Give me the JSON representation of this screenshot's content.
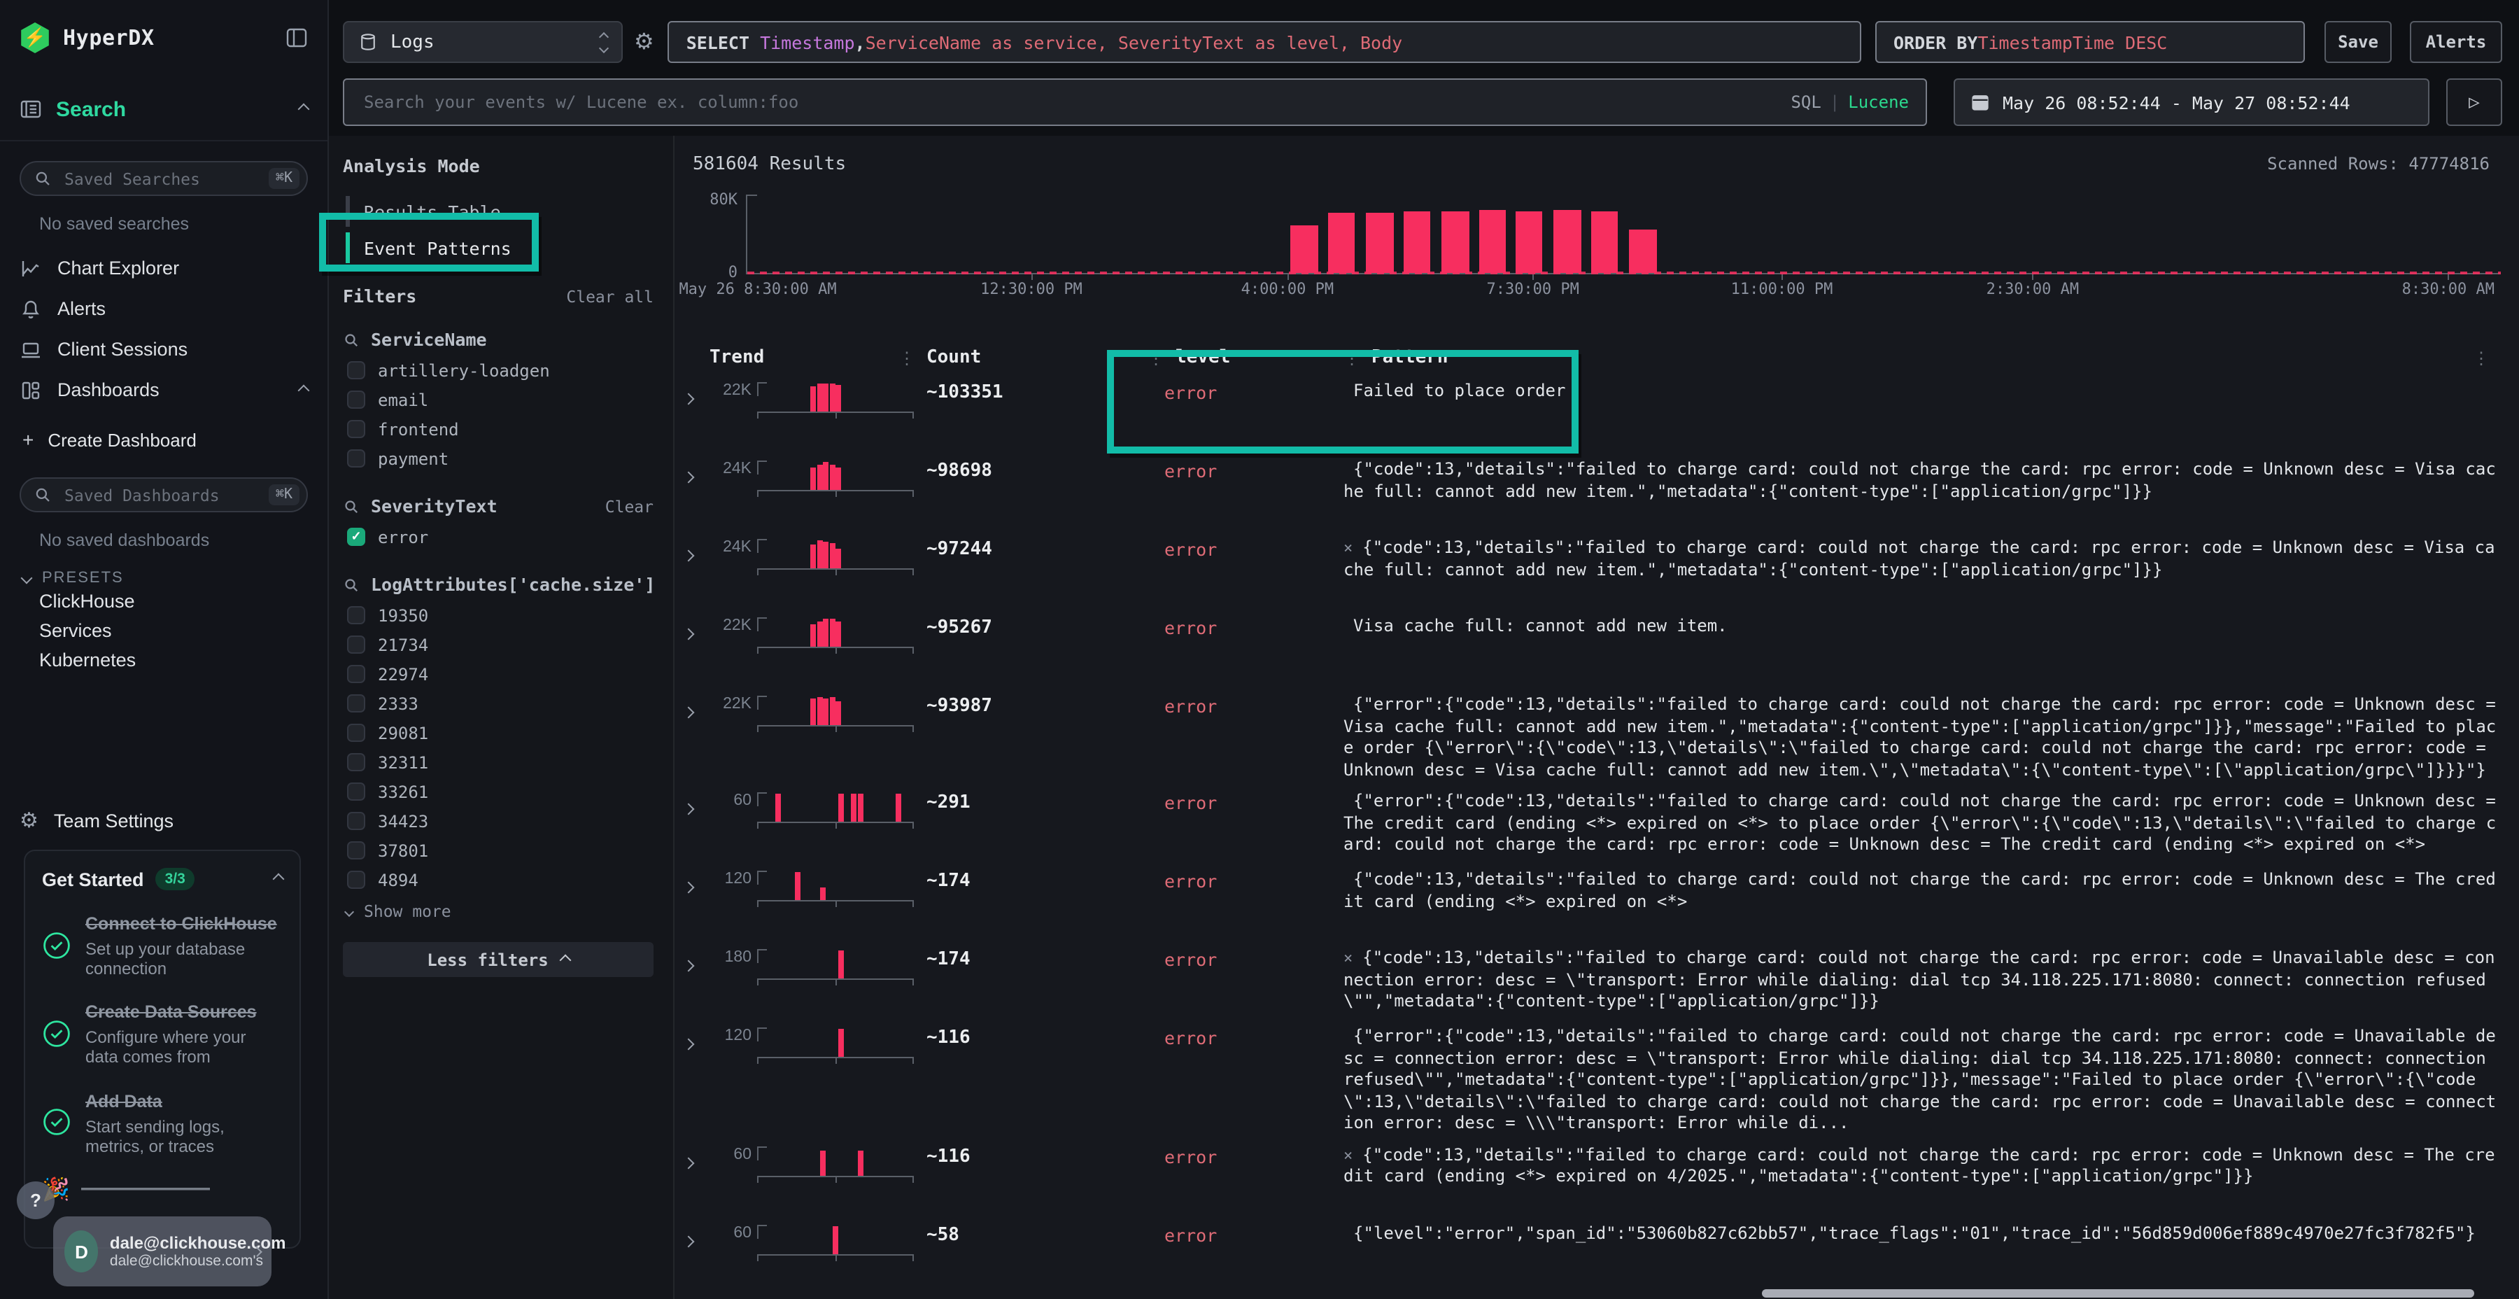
{
  "app": {
    "name": "HyperDX"
  },
  "sidebar": {
    "search_nav": "Search",
    "saved_searches_placeholder": "Saved Searches",
    "shortcut": "⌘K",
    "no_saved_searches": "No saved searches",
    "nav": [
      {
        "label": "Chart Explorer"
      },
      {
        "label": "Alerts"
      },
      {
        "label": "Client Sessions"
      },
      {
        "label": "Dashboards"
      }
    ],
    "create_dashboard": "Create Dashboard",
    "saved_dashboards_placeholder": "Saved Dashboards",
    "no_saved_dashboards": "No saved dashboards",
    "presets_label": "PRESETS",
    "presets": [
      "ClickHouse",
      "Services",
      "Kubernetes"
    ],
    "team_settings": "Team Settings",
    "get_started": {
      "title": "Get Started",
      "badge": "3/3",
      "items": [
        {
          "title": "Connect to ClickHouse",
          "desc": "Set up your database connection"
        },
        {
          "title": "Create Data Sources",
          "desc": "Configure where your data comes from"
        },
        {
          "title": "Add Data",
          "desc": "Start sending logs, metrics, or traces"
        }
      ],
      "partial_item_emoji": "🎉"
    },
    "help_label": "?",
    "user": {
      "avatar": "D",
      "name": "dale@clickhouse.com",
      "sub": "dale@clickhouse.com's"
    }
  },
  "topbar": {
    "source_select": "Logs",
    "select_query": {
      "kw": "SELECT",
      "col1": "Timestamp",
      "comma": ",",
      "rest": " ServiceName as service, SeverityText as level, Body"
    },
    "order_by": {
      "kw": "ORDER BY",
      "expr": " TimestampTime DESC"
    },
    "save_label": "Save",
    "alerts_label": "Alerts",
    "search_placeholder": "Search your events w/ Lucene ex. column:foo",
    "lang_sql": "SQL",
    "lang_sep": "|",
    "lang_lucene": "Lucene",
    "date_range": "May 26 08:52:44 - May 27 08:52:44",
    "run_label": "▷"
  },
  "filters_panel": {
    "analysis_mode": "Analysis Mode",
    "modes": [
      "Results Table",
      "Event Patterns"
    ],
    "filters_label": "Filters",
    "clear_all": "Clear all",
    "groups": {
      "service": {
        "label": "ServiceName",
        "items": [
          "artillery-loadgen",
          "email",
          "frontend",
          "payment"
        ]
      },
      "severity": {
        "label": "SeverityText",
        "clear": "Clear",
        "item": "error",
        "checked": true
      },
      "cache": {
        "label": "LogAttributes['cache.size']",
        "items": [
          "19350",
          "21734",
          "22974",
          "2333",
          "29081",
          "32311",
          "33261",
          "34423",
          "37801",
          "4894"
        ]
      }
    },
    "show_more": "Show more",
    "less_filters": "Less filters"
  },
  "main": {
    "results_label": "581604 Results",
    "scanned_label": "Scanned Rows: 47774816"
  },
  "chart_data": {
    "type": "bar",
    "title": "581604 Results",
    "ylabel": "",
    "xlabel": "",
    "ylim": [
      0,
      80000
    ],
    "yticks": [
      "0",
      "80K"
    ],
    "grid": false,
    "bar_color": "#f72e5f",
    "bars": [
      {
        "x": 0.31,
        "count": 48000
      },
      {
        "x": 0.331,
        "count": 62000
      },
      {
        "x": 0.353,
        "count": 61000
      },
      {
        "x": 0.374,
        "count": 63000
      },
      {
        "x": 0.396,
        "count": 63000
      },
      {
        "x": 0.417,
        "count": 64000
      },
      {
        "x": 0.438,
        "count": 63000
      },
      {
        "x": 0.46,
        "count": 64000
      },
      {
        "x": 0.481,
        "count": 63000
      },
      {
        "x": 0.503,
        "count": 44000
      }
    ],
    "xticks": [
      {
        "x": 0.006,
        "label": "May 26 8:30:00 AM"
      },
      {
        "x": 0.162,
        "label": "12:30:00 PM"
      },
      {
        "x": 0.308,
        "label": "4:00:00 PM"
      },
      {
        "x": 0.448,
        "label": "7:30:00 PM"
      },
      {
        "x": 0.59,
        "label": "11:00:00 PM"
      },
      {
        "x": 0.733,
        "label": "2:30:00 AM"
      },
      {
        "x": 0.97,
        "label": "8:30:00 AM"
      }
    ]
  },
  "table": {
    "headers": {
      "trend": "Trend",
      "count": "Count",
      "level": "level",
      "pattern": "Pattern"
    },
    "rows": [
      {
        "trend_label": "22K",
        "bars": [
          [
            0.34,
            0.92
          ],
          [
            0.38,
            1
          ],
          [
            0.42,
            1
          ],
          [
            0.46,
            1
          ],
          [
            0.5,
            0.95
          ]
        ],
        "count": "~103351",
        "level": "error",
        "prefix": "",
        "pattern": "Failed to place order"
      },
      {
        "trend_label": "24K",
        "bars": [
          [
            0.34,
            0.82
          ],
          [
            0.38,
            0.88
          ],
          [
            0.42,
            1
          ],
          [
            0.46,
            0.92
          ],
          [
            0.5,
            0.78
          ]
        ],
        "count": "~98698",
        "level": "error",
        "prefix": "",
        "pattern": "{\"code\":13,\"details\":\"failed to charge card: could not charge the card: rpc error: code = Unknown desc = Visa cache full: cannot add new item.\",\"metadata\":{\"content-type\":[\"application/grpc\"]}}"
      },
      {
        "trend_label": "24K",
        "bars": [
          [
            0.34,
            0.85
          ],
          [
            0.38,
            1
          ],
          [
            0.42,
            0.95
          ],
          [
            0.46,
            0.9
          ],
          [
            0.5,
            0.72
          ]
        ],
        "count": "~97244",
        "level": "error",
        "prefix": "×",
        "pattern": "{\"code\":13,\"details\":\"failed to charge card: could not charge the card: rpc error: code = Unknown desc = Visa cache full: cannot add new item.\",\"metadata\":{\"content-type\":[\"application/grpc\"]}}"
      },
      {
        "trend_label": "22K",
        "bars": [
          [
            0.34,
            0.8
          ],
          [
            0.38,
            0.92
          ],
          [
            0.42,
            1
          ],
          [
            0.46,
            1
          ],
          [
            0.5,
            0.88
          ]
        ],
        "count": "~95267",
        "level": "error",
        "prefix": "",
        "pattern": "Visa cache full: cannot add new item."
      },
      {
        "trend_label": "22K",
        "bars": [
          [
            0.34,
            0.95
          ],
          [
            0.38,
            1
          ],
          [
            0.42,
            0.95
          ],
          [
            0.46,
            0.98
          ],
          [
            0.5,
            0.85
          ]
        ],
        "count": "~93987",
        "level": "error",
        "prefix": "",
        "pattern": "{\"error\":{\"code\":13,\"details\":\"failed to charge card: could not charge the card: rpc error: code = Unknown desc = Visa cache full: cannot add new item.\",\"metadata\":{\"content-type\":[\"application/grpc\"]}},\"message\":\"Failed to place order {\\\"error\\\":{\\\"code\\\":13,\\\"details\\\":\\\"failed to charge card: could not charge the card: rpc error: code = Unknown desc = Visa cache full: cannot add new item.\\\",\\\"metadata\\\":{\\\"content-type\\\":[\\\"application/grpc\\\"]}}}\"}"
      },
      {
        "trend_label": "60",
        "bars": [
          [
            0.12,
            1
          ],
          [
            0.52,
            1
          ],
          [
            0.6,
            1
          ],
          [
            0.645,
            1
          ],
          [
            0.88,
            1
          ]
        ],
        "count": "~291",
        "level": "error",
        "prefix": "",
        "pattern": "{\"error\":{\"code\":13,\"details\":\"failed to charge card: could not charge the card: rpc error: code = Unknown desc = The credit card (ending <*> expired on <*> to place order {\\\"error\\\":{\\\"code\\\":13,\\\"details\\\":\\\"failed to charge card: could not charge the card: rpc error: code = Unknown desc = The credit card (ending <*> expired on <*>"
      },
      {
        "trend_label": "120",
        "bars": [
          [
            0.24,
            1
          ],
          [
            0.4,
            0.45
          ]
        ],
        "count": "~174",
        "level": "error",
        "prefix": "",
        "pattern": "{\"code\":13,\"details\":\"failed to charge card: could not charge the card: rpc error: code = Unknown desc = The credit card (ending <*> expired on <*>"
      },
      {
        "trend_label": "180",
        "bars": [
          [
            0.52,
            1
          ]
        ],
        "count": "~174",
        "level": "error",
        "prefix": "×",
        "pattern": "{\"code\":13,\"details\":\"failed to charge card: could not charge the card: rpc error: code = Unavailable desc = connection error: desc = \\\"transport: Error while dialing: dial tcp 34.118.225.171:8080: connect: connection refused\\\"\",\"metadata\":{\"content-type\":[\"application/grpc\"]}}"
      },
      {
        "trend_label": "120",
        "bars": [
          [
            0.52,
            1
          ]
        ],
        "count": "~116",
        "level": "error",
        "prefix": "",
        "pattern": "{\"error\":{\"code\":13,\"details\":\"failed to charge card: could not charge the card: rpc error: code = Unavailable desc = connection error: desc = \\\"transport: Error while dialing: dial tcp 34.118.225.171:8080: connect: connection refused\\\"\",\"metadata\":{\"content-type\":[\"application/grpc\"]}},\"message\":\"Failed to place order {\\\"error\\\":{\\\"code\\\":13,\\\"details\\\":\\\"failed to charge card: could not charge the card: rpc error: code = Unavailable desc = connection error: desc = \\\\\\\"transport: Error while di..."
      },
      {
        "trend_label": "60",
        "bars": [
          [
            0.4,
            0.9
          ],
          [
            0.645,
            0.9
          ]
        ],
        "count": "~116",
        "level": "error",
        "prefix": "×",
        "pattern": "{\"code\":13,\"details\":\"failed to charge card: could not charge the card: rpc error: code = Unknown desc = The credit card (ending <*> expired on 4/2025.\",\"metadata\":{\"content-type\":[\"application/grpc\"]}}"
      },
      {
        "trend_label": "60",
        "bars": [
          [
            0.48,
            1
          ]
        ],
        "count": "~58",
        "level": "error",
        "prefix": "",
        "pattern": "{\"level\":\"error\",\"span_id\":\"53060b827c62bb57\",\"trace_flags\":\"01\",\"trace_id\":\"56d859d006ef889c4970e27fc3f782f5\"}"
      }
    ]
  },
  "annotations": {
    "color": "#12bca8"
  }
}
